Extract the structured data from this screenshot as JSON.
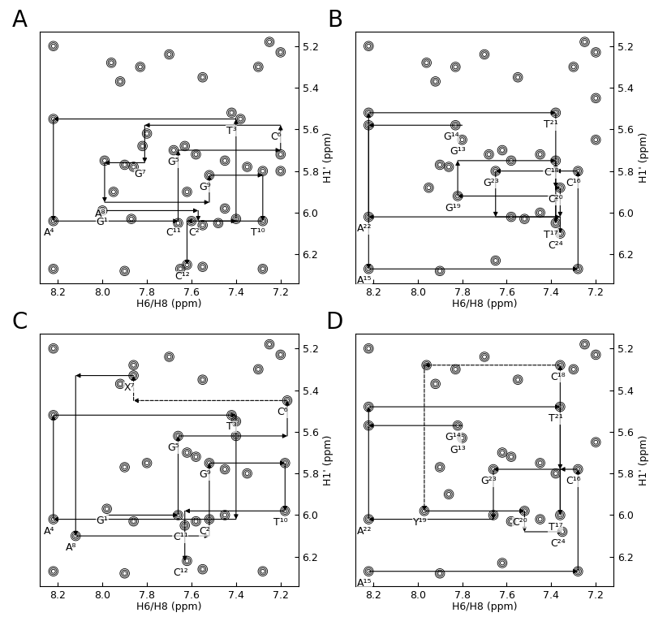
{
  "chart_data": [
    {
      "type": "scatter",
      "title": "A",
      "xlabel": "H6/H8 (ppm)",
      "ylabel": "H1' (ppm)",
      "xlim": [
        8.28,
        7.12
      ],
      "ylim": [
        6.34,
        5.13
      ],
      "xticks": [
        8.2,
        8.0,
        7.8,
        7.6,
        7.4,
        7.2
      ],
      "yticks": [
        5.2,
        5.4,
        5.6,
        5.8,
        6.0,
        6.2
      ],
      "tick_labels": true,
      "grid": false,
      "color": "#000000",
      "x": [
        8.22,
        7.96,
        7.92,
        7.83,
        7.7,
        7.55,
        7.3,
        7.25,
        7.2,
        7.38,
        7.42,
        7.8,
        7.82,
        7.68,
        7.63,
        7.58,
        7.45,
        7.35,
        7.2,
        7.9,
        7.99,
        7.86,
        7.95,
        8.0,
        7.87,
        7.66,
        7.6,
        7.55,
        7.48,
        7.4,
        7.28,
        7.52,
        7.62,
        7.45,
        7.28,
        7.2,
        8.22,
        8.22,
        8.22,
        7.65,
        7.55,
        7.28,
        7.62,
        7.9
      ],
      "y": [
        5.2,
        5.28,
        5.37,
        5.3,
        5.24,
        5.35,
        5.3,
        5.18,
        5.23,
        5.55,
        5.52,
        5.62,
        5.68,
        5.7,
        5.68,
        5.72,
        5.75,
        5.78,
        5.72,
        5.77,
        5.75,
        5.78,
        5.9,
        5.99,
        6.03,
        6.05,
        6.04,
        6.06,
        6.05,
        6.03,
        6.04,
        5.82,
        5.9,
        5.98,
        5.8,
        5.8,
        5.55,
        6.04,
        6.27,
        6.27,
        6.26,
        6.27,
        6.25,
        6.28
      ],
      "walks": [
        {
          "line_style": "solid",
          "points": [
            [
              7.98,
              5.99
            ],
            [
              7.57,
              5.99
            ],
            [
              7.57,
              6.04
            ],
            [
              7.4,
              6.04
            ],
            [
              7.4,
              5.55
            ],
            [
              8.22,
              5.55
            ],
            [
              8.22,
              6.04
            ],
            [
              7.66,
              6.04
            ],
            [
              7.66,
              5.7
            ],
            [
              7.2,
              5.7
            ],
            [
              7.2,
              5.58
            ],
            [
              7.81,
              5.58
            ],
            [
              7.81,
              5.76
            ],
            [
              7.99,
              5.76
            ],
            [
              7.99,
              5.95
            ],
            [
              7.52,
              5.95
            ],
            [
              7.52,
              5.82
            ],
            [
              7.28,
              5.82
            ],
            [
              7.28,
              6.04
            ],
            [
              7.62,
              6.04
            ],
            [
              7.62,
              6.25
            ]
          ]
        }
      ],
      "annotations": [
        {
          "text": "T³",
          "x": 7.4,
          "y": 5.55
        },
        {
          "text": "C⁶",
          "x": 7.2,
          "y": 5.58
        },
        {
          "text": "G⁵",
          "x": 7.66,
          "y": 5.7
        },
        {
          "text": "G⁷",
          "x": 7.81,
          "y": 5.76
        },
        {
          "text": "A⁸",
          "x": 7.99,
          "y": 5.95
        },
        {
          "text": "G¹",
          "x": 7.98,
          "y": 5.99
        },
        {
          "text": "G⁹",
          "x": 7.52,
          "y": 5.82
        },
        {
          "text": "A⁴",
          "x": 8.22,
          "y": 6.04
        },
        {
          "text": "C¹¹",
          "x": 7.66,
          "y": 6.04
        },
        {
          "text": "C²",
          "x": 7.57,
          "y": 6.04
        },
        {
          "text": "T¹⁰",
          "x": 7.28,
          "y": 6.04
        },
        {
          "text": "C¹²",
          "x": 7.62,
          "y": 6.25
        }
      ]
    },
    {
      "type": "scatter",
      "title": "B",
      "xlabel": "H6/H8 (ppm)",
      "ylabel": "H1' (ppm)",
      "xlim": [
        8.28,
        7.12
      ],
      "ylim": [
        6.34,
        5.13
      ],
      "xticks": [
        8.2,
        8.0,
        7.8,
        7.6,
        7.4,
        7.2
      ],
      "yticks": [
        5.2,
        5.4,
        5.6,
        5.8,
        6.0,
        6.2
      ],
      "tick_labels": true,
      "grid": false,
      "color": "#000000",
      "x": [
        8.22,
        7.96,
        7.92,
        7.83,
        7.7,
        7.55,
        7.3,
        7.25,
        7.2,
        7.38,
        7.83,
        7.8,
        7.68,
        7.62,
        7.58,
        7.45,
        7.38,
        7.36,
        7.28,
        7.9,
        7.95,
        7.86,
        7.82,
        7.65,
        7.58,
        7.52,
        7.45,
        7.38,
        7.36,
        7.2,
        8.22,
        8.22,
        8.22,
        8.22,
        7.65,
        7.28,
        7.9,
        7.2
      ],
      "y": [
        5.2,
        5.28,
        5.37,
        5.3,
        5.24,
        5.35,
        5.3,
        5.18,
        5.23,
        5.52,
        5.58,
        5.65,
        5.72,
        5.7,
        5.75,
        5.72,
        5.75,
        5.88,
        5.8,
        5.77,
        5.88,
        5.78,
        5.92,
        5.8,
        6.02,
        6.03,
        6.0,
        6.05,
        6.1,
        5.65,
        5.52,
        5.58,
        6.02,
        6.27,
        6.23,
        6.27,
        6.28,
        5.45
      ],
      "walks": [
        {
          "line_style": "solid",
          "points": [
            [
              8.22,
              5.58
            ],
            [
              8.22,
              6.27
            ],
            [
              7.28,
              6.27
            ],
            [
              7.28,
              5.8
            ],
            [
              7.38,
              5.8
            ],
            [
              7.38,
              6.05
            ],
            [
              7.38,
              5.92
            ],
            [
              7.82,
              5.92
            ],
            [
              7.82,
              5.75
            ],
            [
              7.38,
              5.75
            ],
            [
              7.38,
              5.88
            ],
            [
              7.36,
              5.88
            ],
            [
              7.36,
              6.02
            ],
            [
              8.22,
              6.02
            ],
            [
              8.22,
              5.52
            ],
            [
              7.38,
              5.52
            ],
            [
              7.38,
              5.8
            ],
            [
              7.65,
              5.8
            ],
            [
              7.65,
              6.02
            ],
            [
              7.36,
              6.02
            ],
            [
              7.36,
              6.1
            ]
          ]
        },
        {
          "line_style": "solid",
          "points": [
            [
              7.8,
              5.58
            ],
            [
              8.22,
              5.58
            ]
          ]
        }
      ],
      "annotations": [
        {
          "text": "T²¹",
          "x": 7.38,
          "y": 5.52
        },
        {
          "text": "G¹⁴",
          "x": 7.83,
          "y": 5.58
        },
        {
          "text": "G¹³",
          "x": 7.8,
          "y": 5.65
        },
        {
          "text": "C¹⁸",
          "x": 7.38,
          "y": 5.75
        },
        {
          "text": "C¹⁶",
          "x": 7.28,
          "y": 5.8
        },
        {
          "text": "G²³",
          "x": 7.65,
          "y": 5.8
        },
        {
          "text": "C²⁰",
          "x": 7.36,
          "y": 5.88
        },
        {
          "text": "G¹⁹",
          "x": 7.82,
          "y": 5.92
        },
        {
          "text": "A²²",
          "x": 8.22,
          "y": 6.02
        },
        {
          "text": "T¹⁷",
          "x": 7.38,
          "y": 6.05
        },
        {
          "text": "C²⁴",
          "x": 7.36,
          "y": 6.1
        },
        {
          "text": "A¹⁵",
          "x": 8.22,
          "y": 6.27
        }
      ]
    },
    {
      "type": "scatter",
      "title": "C",
      "xlabel": "H6/H8 (ppm)",
      "ylabel": "H1' (ppm)",
      "xlim": [
        8.28,
        7.12
      ],
      "ylim": [
        6.34,
        5.13
      ],
      "xticks": [
        8.2,
        8.0,
        7.8,
        7.6,
        7.4,
        7.2
      ],
      "yticks": [
        5.2,
        5.4,
        5.6,
        5.8,
        6.0,
        6.2
      ],
      "tick_labels": true,
      "grid": false,
      "color": "#000000",
      "x": [
        8.22,
        7.92,
        7.86,
        7.7,
        7.55,
        7.3,
        7.25,
        7.2,
        7.4,
        7.42,
        7.86,
        7.8,
        7.66,
        7.62,
        7.58,
        7.52,
        7.45,
        7.35,
        7.18,
        7.17,
        7.9,
        7.98,
        8.12,
        7.86,
        7.66,
        7.63,
        7.58,
        7.52,
        7.45,
        7.4,
        7.18,
        8.22,
        8.22,
        8.22,
        7.62,
        7.55,
        7.28,
        7.9
      ],
      "y": [
        5.2,
        5.37,
        5.33,
        5.24,
        5.35,
        5.3,
        5.18,
        5.23,
        5.55,
        5.52,
        5.28,
        5.75,
        5.62,
        5.7,
        5.72,
        5.75,
        5.78,
        5.8,
        5.75,
        5.45,
        5.77,
        5.97,
        6.1,
        6.03,
        6.0,
        6.05,
        6.03,
        6.02,
        6.0,
        5.62,
        5.98,
        5.52,
        6.02,
        6.27,
        6.22,
        6.26,
        6.27,
        6.28
      ],
      "walks": [
        {
          "line_style": "solid",
          "points": [
            [
              7.98,
              6.0
            ],
            [
              7.66,
              6.0
            ],
            [
              7.66,
              5.62
            ],
            [
              7.17,
              5.62
            ],
            [
              7.17,
              5.45
            ]
          ]
        },
        {
          "line_style": "dashed",
          "points": [
            [
              7.17,
              5.45
            ],
            [
              7.86,
              5.45
            ],
            [
              7.86,
              5.33
            ]
          ]
        },
        {
          "line_style": "solid",
          "points": [
            [
              7.86,
              5.33
            ],
            [
              8.12,
              5.33
            ],
            [
              8.12,
              6.1
            ],
            [
              7.52,
              6.1
            ],
            [
              7.52,
              5.75
            ],
            [
              7.18,
              5.75
            ],
            [
              7.18,
              5.98
            ],
            [
              7.63,
              5.98
            ],
            [
              7.63,
              6.22
            ]
          ]
        },
        {
          "line_style": "solid",
          "points": [
            [
              8.22,
              6.02
            ],
            [
              8.22,
              5.52
            ],
            [
              7.4,
              5.52
            ],
            [
              7.4,
              6.02
            ],
            [
              8.22,
              6.02
            ]
          ]
        }
      ],
      "annotations": [
        {
          "text": "X⁷",
          "x": 7.86,
          "y": 5.33
        },
        {
          "text": "C⁶",
          "x": 7.17,
          "y": 5.45
        },
        {
          "text": "T³",
          "x": 7.4,
          "y": 5.52
        },
        {
          "text": "G⁵",
          "x": 7.66,
          "y": 5.62
        },
        {
          "text": "G⁹",
          "x": 7.52,
          "y": 5.75
        },
        {
          "text": "T¹⁰",
          "x": 7.18,
          "y": 5.98
        },
        {
          "text": "G¹",
          "x": 7.98,
          "y": 5.97
        },
        {
          "text": "A⁴",
          "x": 8.22,
          "y": 6.02
        },
        {
          "text": "A⁸",
          "x": 8.12,
          "y": 6.1
        },
        {
          "text": "C¹¹",
          "x": 7.63,
          "y": 6.05
        },
        {
          "text": "C²",
          "x": 7.52,
          "y": 6.02
        },
        {
          "text": "C¹²",
          "x": 7.63,
          "y": 6.22
        }
      ]
    },
    {
      "type": "scatter",
      "title": "D",
      "xlabel": "H6/H8 (ppm)",
      "ylabel": "H1' (ppm)",
      "xlim": [
        8.28,
        7.12
      ],
      "ylim": [
        6.34,
        5.13
      ],
      "xticks": [
        8.2,
        8.0,
        7.8,
        7.6,
        7.4,
        7.2
      ],
      "yticks": [
        5.2,
        5.4,
        5.6,
        5.8,
        6.0,
        6.2
      ],
      "tick_labels": true,
      "grid": false,
      "color": "#000000",
      "x": [
        8.22,
        7.96,
        7.92,
        7.83,
        7.7,
        7.55,
        7.3,
        7.25,
        7.2,
        7.36,
        7.36,
        7.82,
        7.8,
        7.66,
        7.62,
        7.58,
        7.45,
        7.38,
        7.28,
        7.9,
        7.97,
        7.86,
        7.66,
        7.58,
        7.52,
        7.45,
        7.36,
        7.35,
        7.2,
        8.22,
        8.22,
        8.22,
        8.22,
        7.62,
        7.28,
        7.9
      ],
      "y": [
        5.2,
        5.28,
        5.37,
        5.3,
        5.24,
        5.35,
        5.3,
        5.18,
        5.23,
        5.28,
        5.48,
        5.57,
        5.63,
        5.78,
        5.7,
        5.72,
        5.75,
        5.8,
        5.78,
        5.77,
        5.98,
        5.9,
        6.0,
        6.03,
        5.98,
        6.02,
        6.0,
        6.08,
        5.65,
        5.48,
        5.57,
        6.02,
        6.27,
        6.23,
        6.27,
        6.28
      ],
      "walks": [
        {
          "line_style": "solid",
          "points": [
            [
              8.22,
              6.27
            ],
            [
              7.28,
              6.27
            ],
            [
              7.28,
              5.78
            ],
            [
              7.36,
              5.78
            ],
            [
              7.36,
              6.0
            ],
            [
              7.36,
              5.28
            ]
          ]
        },
        {
          "line_style": "dashed",
          "points": [
            [
              7.36,
              5.28
            ],
            [
              7.97,
              5.28
            ],
            [
              7.97,
              5.98
            ]
          ]
        },
        {
          "line_style": "solid",
          "points": [
            [
              7.97,
              5.98
            ],
            [
              7.52,
              5.98
            ],
            [
              7.52,
              6.08
            ],
            [
              7.35,
              6.08
            ]
          ]
        },
        {
          "line_style": "solid",
          "points": [
            [
              8.22,
              6.02
            ],
            [
              8.22,
              5.48
            ],
            [
              7.36,
              5.48
            ],
            [
              7.36,
              5.78
            ],
            [
              7.66,
              5.78
            ],
            [
              7.66,
              6.02
            ],
            [
              8.22,
              6.02
            ]
          ]
        },
        {
          "line_style": "solid",
          "points": [
            [
              7.8,
              5.57
            ],
            [
              8.22,
              5.57
            ]
          ]
        }
      ],
      "annotations": [
        {
          "text": "C¹⁸",
          "x": 7.35,
          "y": 5.28
        },
        {
          "text": "T²¹",
          "x": 7.36,
          "y": 5.48
        },
        {
          "text": "G¹⁴",
          "x": 7.82,
          "y": 5.57
        },
        {
          "text": "G¹³",
          "x": 7.8,
          "y": 5.63
        },
        {
          "text": "C¹⁶",
          "x": 7.28,
          "y": 5.78
        },
        {
          "text": "G²³",
          "x": 7.66,
          "y": 5.78
        },
        {
          "text": "C²⁰",
          "x": 7.52,
          "y": 5.98
        },
        {
          "text": "T¹⁷",
          "x": 7.36,
          "y": 6.0
        },
        {
          "text": "Y¹⁹",
          "x": 7.97,
          "y": 5.98
        },
        {
          "text": "A²²",
          "x": 8.22,
          "y": 6.02
        },
        {
          "text": "C²⁴",
          "x": 7.35,
          "y": 6.08
        },
        {
          "text": "A¹⁵",
          "x": 8.22,
          "y": 6.27
        }
      ]
    }
  ]
}
